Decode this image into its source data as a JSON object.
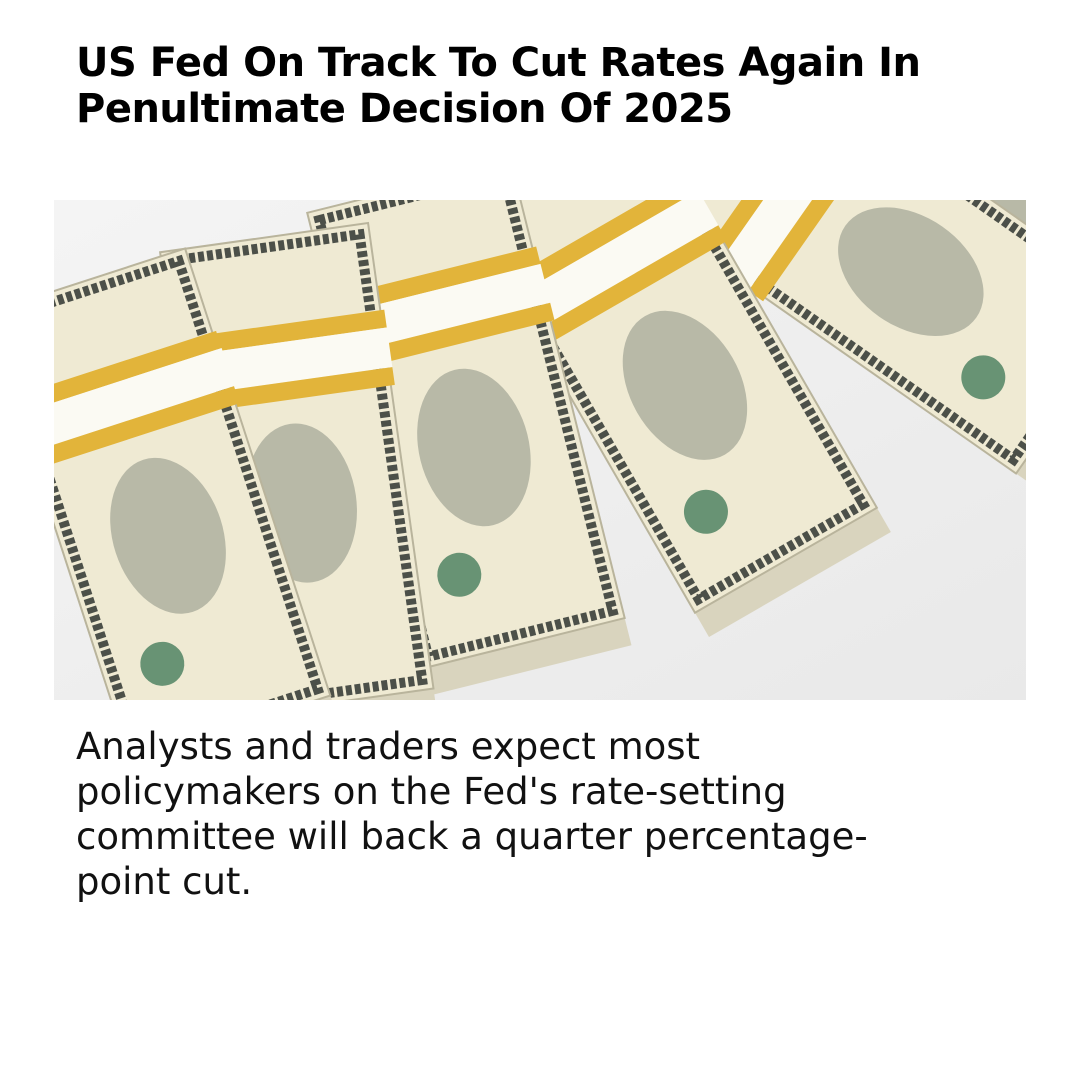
{
  "post": {
    "headline": "US Fed On Track To Cut Rates Again In Penultimate Decision Of 2025",
    "body": "Analysts and traders expect most policymakers on the Fed's rate-setting committee will back a quarter percentage-point cut."
  }
}
